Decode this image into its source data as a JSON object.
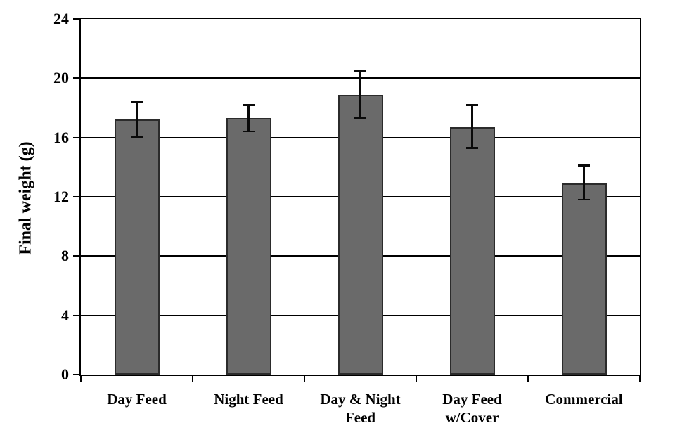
{
  "chart_data": {
    "type": "bar",
    "title": "",
    "xlabel": "",
    "ylabel": "Final weight (g)",
    "ylim": [
      0,
      24
    ],
    "yticks": [
      0,
      4,
      8,
      12,
      16,
      20,
      24
    ],
    "grid": true,
    "legend": false,
    "categories": [
      "Day Feed",
      "Night Feed",
      "Day & Night\nFeed",
      "Day Feed\nw/Cover",
      "Commercial"
    ],
    "values": [
      17.2,
      17.3,
      18.9,
      16.7,
      12.9
    ],
    "error_high": [
      18.4,
      18.2,
      20.5,
      18.2,
      14.1
    ],
    "error_low": [
      16.0,
      16.4,
      17.3,
      15.3,
      11.8
    ],
    "bar_color": "#6a6a6a",
    "bar_border_color": "#2b2b2b",
    "axis_color": "#000000",
    "error_bar_color": "#0a0a0a",
    "background_color": "#ffffff"
  }
}
